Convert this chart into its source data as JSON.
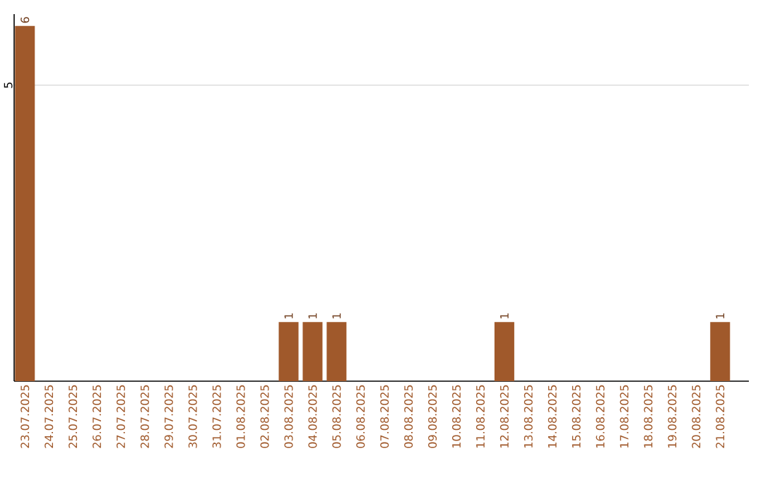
{
  "chart_data": {
    "type": "bar",
    "categories": [
      "23.07.2025",
      "24.07.2025",
      "25.07.2025",
      "26.07.2025",
      "27.07.2025",
      "28.07.2025",
      "29.07.2025",
      "30.07.2025",
      "31.07.2025",
      "01.08.2025",
      "02.08.2025",
      "03.08.2025",
      "04.08.2025",
      "05.08.2025",
      "06.08.2025",
      "07.08.2025",
      "08.08.2025",
      "09.08.2025",
      "10.08.2025",
      "11.08.2025",
      "12.08.2025",
      "13.08.2025",
      "14.08.2025",
      "15.08.2025",
      "16.08.2025",
      "17.08.2025",
      "18.08.2025",
      "19.08.2025",
      "20.08.2025",
      "21.08.2025"
    ],
    "values": [
      6,
      0,
      0,
      0,
      0,
      0,
      0,
      0,
      0,
      0,
      0,
      1,
      1,
      1,
      0,
      0,
      0,
      0,
      0,
      0,
      1,
      0,
      0,
      0,
      0,
      0,
      0,
      0,
      0,
      1
    ],
    "value_labels": [
      "6",
      null,
      null,
      null,
      null,
      null,
      null,
      null,
      null,
      null,
      null,
      "1",
      "1",
      "1",
      null,
      null,
      null,
      null,
      null,
      null,
      "1",
      null,
      null,
      null,
      null,
      null,
      null,
      null,
      null,
      "1"
    ],
    "color": "#a0592b",
    "ylim": [
      0,
      6.2
    ],
    "yticks": [
      5
    ],
    "grid": "y"
  }
}
